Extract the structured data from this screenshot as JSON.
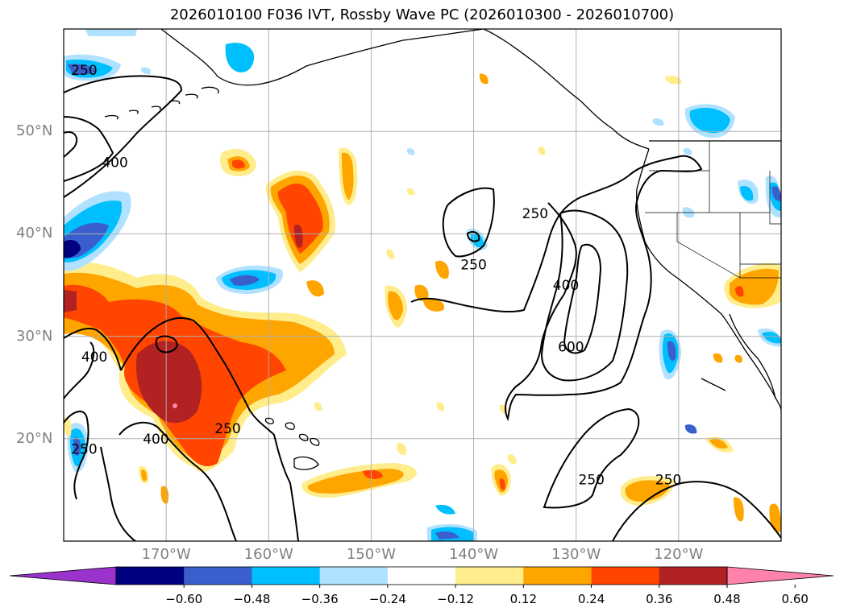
{
  "title": "2026010100 F036 IVT, Rossby Wave PC (2026010300 - 2026010700)",
  "axes": {
    "lat_labels": [
      {
        "value": 50,
        "text": "50°N"
      },
      {
        "value": 40,
        "text": "40°N"
      },
      {
        "value": 30,
        "text": "30°N"
      },
      {
        "value": 20,
        "text": "20°N"
      }
    ],
    "lon_labels": [
      {
        "value": -170,
        "text": "170°W"
      },
      {
        "value": -160,
        "text": "160°W"
      },
      {
        "value": -150,
        "text": "150°W"
      },
      {
        "value": -140,
        "text": "140°W"
      },
      {
        "value": -130,
        "text": "130°W"
      },
      {
        "value": -120,
        "text": "120°W"
      }
    ],
    "lat_range": [
      10,
      60
    ],
    "lon_range": [
      -180,
      -110
    ],
    "grid": true
  },
  "contour_labels": [
    {
      "text": "250",
      "lon": -178,
      "lat": 56
    },
    {
      "text": "400",
      "lon": -175,
      "lat": 47
    },
    {
      "text": "250",
      "lon": -140,
      "lat": 37
    },
    {
      "text": "250",
      "lon": -134,
      "lat": 42
    },
    {
      "text": "400",
      "lon": -131,
      "lat": 35
    },
    {
      "text": "600",
      "lon": -130.5,
      "lat": 29
    },
    {
      "text": "400",
      "lon": -177,
      "lat": 28
    },
    {
      "text": "250",
      "lon": -164,
      "lat": 21
    },
    {
      "text": "400",
      "lon": -171,
      "lat": 20
    },
    {
      "text": "250",
      "lon": -178,
      "lat": 19
    },
    {
      "text": "250",
      "lon": -128.5,
      "lat": 16
    },
    {
      "text": "250",
      "lon": -121,
      "lat": 16
    }
  ],
  "colorbar": {
    "colors": [
      "#9933cc",
      "#000080",
      "#3a5fcd",
      "#00bfff",
      "#b0e2ff",
      "#ffffff",
      "#ffec8b",
      "#ffa500",
      "#ff4500",
      "#b22222",
      "#ff82ab"
    ],
    "ticks": [
      "−0.60",
      "−0.48",
      "−0.36",
      "−0.24",
      "−0.12",
      "0.12",
      "0.24",
      "0.36",
      "0.48",
      "0.60"
    ]
  }
}
